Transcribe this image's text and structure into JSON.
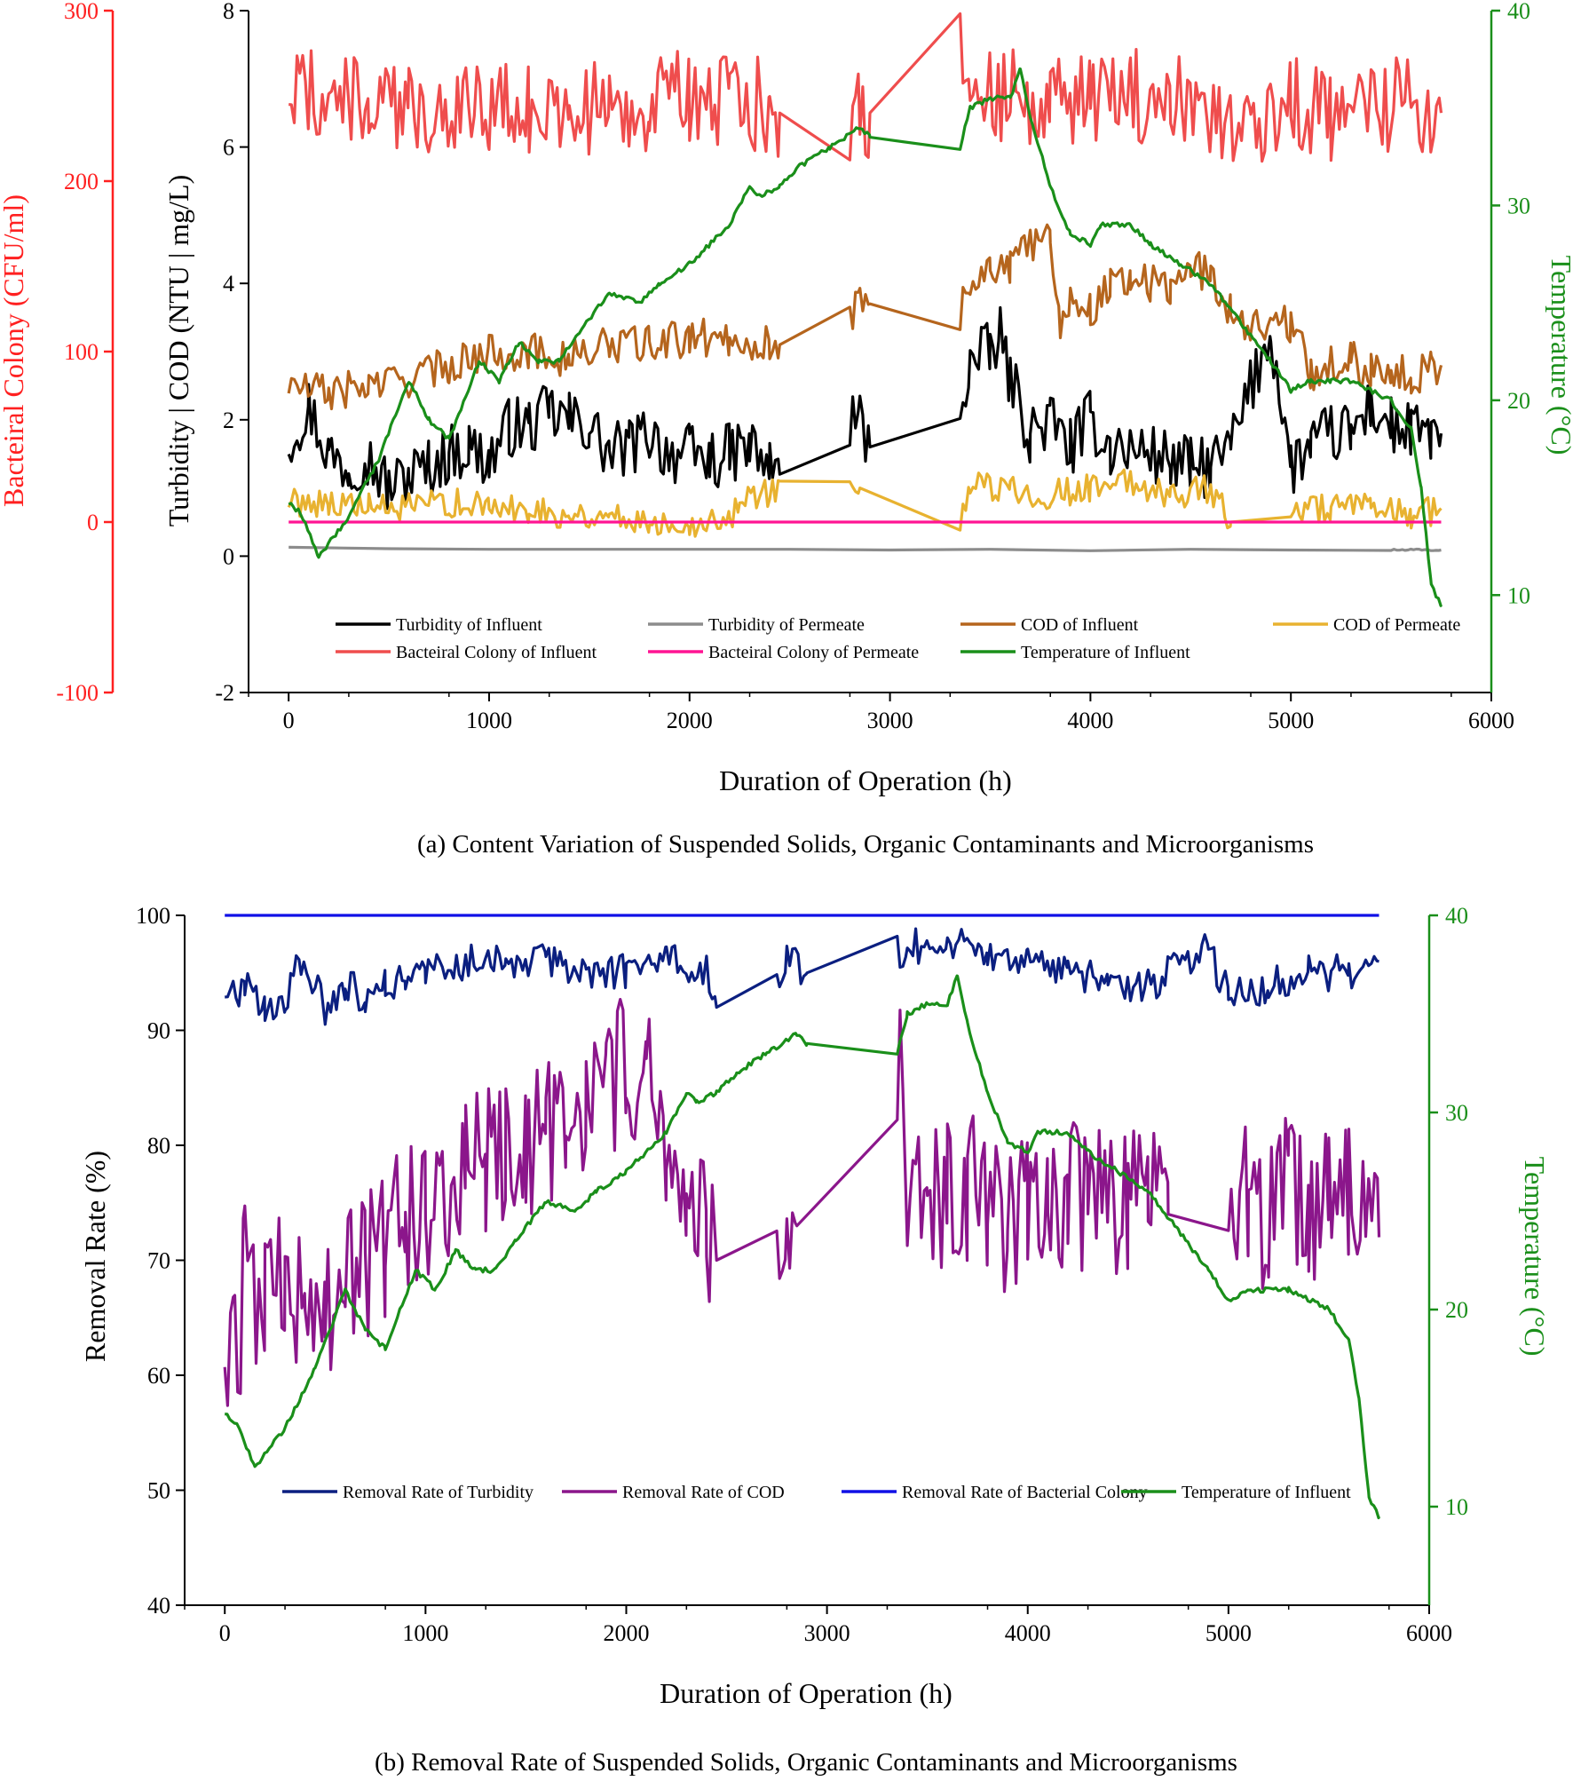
{
  "chart_data": [
    {
      "type": "line",
      "caption": "(a) Content Variation of Suspended Solids, Organic Contaminants and Microorganisms",
      "xlabel": "Duration of Operation (h)",
      "xlim": [
        -200,
        6000
      ],
      "xticks": [
        0,
        1000,
        2000,
        3000,
        4000,
        5000,
        6000
      ],
      "colors": {
        "turbidity_influent": "#000000",
        "turbidity_permeate": "#8c8c8c",
        "cod_influent": "#b5651d",
        "cod_permeate": "#e8b230",
        "bacteria_influent": "#ef4d4d",
        "bacteria_permeate": "#ff1493",
        "temperature": "#1a8f1a"
      },
      "left_axis": {
        "label": "Turbidity | COD (NTU | mg/L)",
        "ylim": [
          -2,
          8
        ],
        "ticks": [
          -2,
          0,
          2,
          4,
          6,
          8
        ]
      },
      "far_left_axis": {
        "label": "Bacteiral Colony (CFU/ml)",
        "ylim": [
          -100,
          300
        ],
        "ticks": [
          -100,
          0,
          100,
          200,
          300
        ],
        "color": "#ff2020"
      },
      "right_axis": {
        "label": "Temperature (°C)",
        "ylim": [
          5,
          40
        ],
        "ticks": [
          10,
          20,
          30,
          40
        ],
        "color": "#1a8f1a"
      },
      "legend_position": "bottom-center",
      "series": [
        {
          "key": "turbidity_influent",
          "name": "Turbidity of Influent",
          "axis": "left",
          "x": [
            0,
            100,
            200,
            300,
            380,
            500,
            600,
            700,
            800,
            900,
            1000,
            1100,
            1200,
            1300,
            1400,
            1500,
            1600,
            1700,
            1800,
            1900,
            2000,
            2100,
            2200,
            2300,
            2400,
            2450,
            2800,
            2850,
            2900,
            3350,
            3400,
            3500,
            3550,
            3600,
            3700,
            3800,
            3900,
            4000,
            4100,
            4200,
            4300,
            4400,
            4500,
            4600,
            4700,
            4900,
            5000,
            5100,
            5200,
            5300,
            5400,
            5500,
            5600,
            5700,
            5750
          ],
          "y": [
            1.7,
            2.2,
            1.5,
            1.3,
            1.5,
            1.0,
            1.2,
            1.3,
            1.5,
            1.6,
            1.4,
            1.9,
            1.9,
            2.1,
            2.0,
            1.9,
            1.5,
            1.6,
            1.8,
            1.5,
            1.5,
            1.4,
            1.5,
            1.6,
            1.3,
            1.2,
            2.0,
            2.0,
            1.6,
            2.2,
            2.8,
            3.0,
            3.2,
            2.6,
            1.8,
            2.0,
            1.6,
            2.0,
            1.6,
            1.6,
            1.5,
            1.4,
            1.3,
            1.3,
            1.6,
            3.3,
            1.3,
            1.6,
            1.8,
            1.8,
            2.2,
            1.9,
            1.8,
            1.8,
            1.8
          ]
        },
        {
          "key": "turbidity_permeate",
          "name": "Turbidity of Permeate",
          "axis": "left",
          "x": [
            0,
            500,
            1000,
            1500,
            2000,
            2500,
            3000,
            3500,
            4000,
            4500,
            5000,
            5500,
            5750
          ],
          "y": [
            0.13,
            0.11,
            0.1,
            0.1,
            0.1,
            0.1,
            0.09,
            0.1,
            0.08,
            0.1,
            0.09,
            0.09,
            0.09
          ]
        },
        {
          "key": "cod_influent",
          "name": "COD of Influent",
          "axis": "left",
          "x": [
            0,
            200,
            400,
            600,
            800,
            1000,
            1200,
            1400,
            1600,
            1800,
            2000,
            2200,
            2400,
            2450,
            2800,
            2850,
            2900,
            3350,
            3400,
            3500,
            3600,
            3700,
            3800,
            3850,
            3900,
            4000,
            4100,
            4200,
            4300,
            4400,
            4500,
            4600,
            4700,
            4800,
            5000,
            5100,
            5200,
            5300,
            5400,
            5500,
            5600,
            5700,
            5750
          ],
          "y": [
            2.5,
            2.4,
            2.5,
            2.6,
            2.8,
            3.0,
            3.0,
            2.9,
            3.1,
            3.1,
            3.2,
            3.2,
            3.1,
            3.1,
            3.4,
            3.8,
            3.7,
            3.6,
            4.0,
            4.3,
            4.2,
            4.6,
            4.7,
            3.4,
            3.8,
            3.6,
            4.0,
            4.1,
            4.0,
            3.9,
            4.3,
            4.1,
            3.6,
            3.4,
            3.4,
            2.7,
            2.8,
            2.9,
            2.7,
            2.8,
            2.6,
            2.8,
            2.8
          ]
        },
        {
          "key": "cod_permeate",
          "name": "COD of Permeate",
          "axis": "left",
          "x": [
            0,
            200,
            400,
            600,
            800,
            1000,
            1200,
            1400,
            1600,
            1800,
            2000,
            2200,
            2250,
            2400,
            2450,
            2800,
            2850,
            3350,
            3400,
            3600,
            3800,
            4000,
            4200,
            4400,
            4600,
            4700,
            5000,
            5200,
            5400,
            5600,
            5750
          ],
          "y": [
            0.8,
            0.8,
            0.7,
            0.7,
            0.8,
            0.7,
            0.7,
            0.6,
            0.6,
            0.5,
            0.5,
            0.5,
            0.9,
            0.9,
            1.1,
            1.1,
            1.0,
            0.4,
            1.0,
            1.0,
            0.9,
            1.0,
            1.1,
            0.9,
            1.0,
            0.5,
            0.7,
            0.7,
            0.7,
            0.6,
            0.7
          ]
        },
        {
          "key": "bacteria_influent",
          "name": "Bacteiral Colony of Influent",
          "axis": "far_left",
          "x": [
            0,
            200,
            400,
            600,
            800,
            1000,
            1200,
            1400,
            1600,
            1800,
            2000,
            2200,
            2400,
            2450,
            2800,
            2850,
            2900,
            3350,
            3400,
            3600,
            3800,
            4000,
            4200,
            4400,
            4600,
            4800,
            5000,
            5200,
            5400,
            5600,
            5750
          ],
          "y": [
            255,
            250,
            245,
            240,
            245,
            245,
            240,
            245,
            240,
            245,
            250,
            245,
            245,
            240,
            240,
            245,
            240,
            290,
            245,
            250,
            245,
            245,
            250,
            245,
            245,
            230,
            245,
            240,
            245,
            245,
            240
          ]
        },
        {
          "key": "bacteria_permeate",
          "name": "Bacteiral Colony of Permeate",
          "axis": "far_left",
          "x": [
            0,
            5750
          ],
          "y": [
            0,
            0
          ]
        },
        {
          "key": "temperature",
          "name": "Temperature of Influent",
          "axis": "right",
          "x": [
            0,
            60,
            150,
            300,
            450,
            600,
            700,
            800,
            950,
            1050,
            1150,
            1250,
            1350,
            1450,
            1600,
            1750,
            1850,
            2000,
            2200,
            2300,
            2350,
            2450,
            2550,
            2700,
            2850,
            2900,
            3350,
            3400,
            3500,
            3600,
            3650,
            3700,
            3800,
            3900,
            4000,
            4050,
            4200,
            4300,
            4450,
            4600,
            4750,
            4900,
            5000,
            5100,
            5200,
            5300,
            5500,
            5600,
            5650,
            5700,
            5750
          ],
          "y": [
            14.7,
            14.2,
            12,
            14,
            17,
            21,
            19,
            18,
            22,
            21,
            23,
            22,
            22,
            23.5,
            25.5,
            25,
            26,
            27,
            29,
            31,
            30.5,
            31,
            32,
            33,
            34,
            33.5,
            33,
            35,
            35.5,
            35.5,
            37,
            34.5,
            31,
            28.5,
            28,
            29,
            29,
            28,
            27,
            26,
            24,
            22,
            20.5,
            21,
            21,
            21,
            20,
            18.5,
            15.5,
            10.5,
            9.5
          ]
        }
      ]
    },
    {
      "type": "line",
      "caption": "(b) Removal Rate of Suspended Solids, Organic Contaminants and Microorganisms",
      "xlabel": "Duration of Operation (h)",
      "xlim": [
        -200,
        6000
      ],
      "xticks": [
        0,
        1000,
        2000,
        3000,
        4000,
        5000,
        6000
      ],
      "colors": {
        "removal_turbidity": "#0b1f80",
        "removal_cod": "#8b168b",
        "removal_bacteria": "#1010e6",
        "temperature": "#1a8f1a"
      },
      "left_axis": {
        "label": "Removal Rate (%)",
        "ylim": [
          40,
          100
        ],
        "ticks": [
          40,
          50,
          60,
          70,
          80,
          90,
          100
        ]
      },
      "right_axis": {
        "label": "Temperature (°C)",
        "ylim": [
          5,
          40
        ],
        "ticks": [
          10,
          20,
          30,
          40
        ],
        "color": "#1a8f1a"
      },
      "legend_position": "bottom-center",
      "series": [
        {
          "key": "removal_turbidity",
          "name": "Removal Rate of Turbidity",
          "axis": "left",
          "x": [
            0,
            100,
            200,
            300,
            380,
            500,
            600,
            700,
            800,
            900,
            1000,
            1200,
            1400,
            1600,
            1800,
            2000,
            2200,
            2400,
            2450,
            2750,
            2800,
            2900,
            3350,
            3400,
            3550,
            3600,
            3800,
            4000,
            4200,
            4400,
            4600,
            4700,
            4900,
            5000,
            5200,
            5400,
            5600,
            5750
          ],
          "y": [
            93,
            94,
            92,
            93,
            96,
            92,
            94,
            93,
            94,
            94,
            95,
            96,
            96,
            96,
            95,
            95,
            96,
            95,
            92,
            95,
            96,
            95,
            97,
            97,
            98,
            98,
            97,
            96,
            95,
            94,
            94,
            95,
            97,
            93,
            94,
            95,
            95,
            96
          ]
        },
        {
          "key": "removal_cod",
          "name": "Removal Rate of COD",
          "axis": "left",
          "x": [
            0,
            50,
            100,
            200,
            300,
            400,
            500,
            600,
            700,
            800,
            900,
            1000,
            1100,
            1200,
            1300,
            1400,
            1500,
            1600,
            1700,
            1800,
            1900,
            2000,
            2100,
            2200,
            2300,
            2400,
            2450,
            2750,
            2800,
            2850,
            3350,
            3400,
            3500,
            3600,
            3700,
            3800,
            3900,
            4000,
            4100,
            4200,
            4300,
            4400,
            4500,
            4600,
            4700,
            5000,
            5100,
            5200,
            5300,
            5400,
            5500,
            5600,
            5700,
            5750
          ],
          "y": [
            61,
            61,
            68,
            66,
            67,
            68,
            67,
            68,
            70,
            72,
            73,
            74,
            76,
            77,
            78,
            78,
            79,
            80,
            82,
            84,
            85,
            86,
            86,
            78,
            76,
            74,
            70,
            72,
            76,
            73,
            89,
            77,
            76,
            75,
            76,
            75,
            74,
            74,
            75,
            76,
            75,
            74,
            76,
            75,
            74,
            76,
            75,
            74,
            76,
            75,
            74,
            75,
            76,
            72
          ]
        },
        {
          "key": "removal_bacteria",
          "name": "Removal Rate of Bacterial Colony",
          "axis": "left",
          "x": [
            0,
            5750
          ],
          "y": [
            100,
            100
          ]
        },
        {
          "key": "temperature",
          "name": "Temperature of Influent",
          "axis": "right",
          "x": [
            0,
            60,
            150,
            300,
            450,
            600,
            700,
            800,
            950,
            1050,
            1150,
            1250,
            1350,
            1450,
            1600,
            1750,
            1850,
            2000,
            2200,
            2300,
            2350,
            2450,
            2550,
            2700,
            2850,
            2900,
            3350,
            3400,
            3500,
            3600,
            3650,
            3700,
            3800,
            3900,
            4000,
            4050,
            4200,
            4300,
            4450,
            4600,
            4750,
            4900,
            5000,
            5100,
            5200,
            5300,
            5500,
            5600,
            5650,
            5700,
            5750
          ],
          "y": [
            14.7,
            14.2,
            12,
            14,
            17,
            21,
            19,
            18,
            22,
            21,
            23,
            22,
            22,
            23.5,
            25.5,
            25,
            26,
            27,
            29,
            31,
            30.5,
            31,
            32,
            33,
            34,
            33.5,
            33,
            35,
            35.5,
            35.5,
            37,
            34.5,
            31,
            28.5,
            28,
            29,
            29,
            28,
            27,
            26,
            24,
            22,
            20.5,
            21,
            21,
            21,
            20,
            18.5,
            15.5,
            10.5,
            9.5
          ]
        }
      ]
    }
  ]
}
